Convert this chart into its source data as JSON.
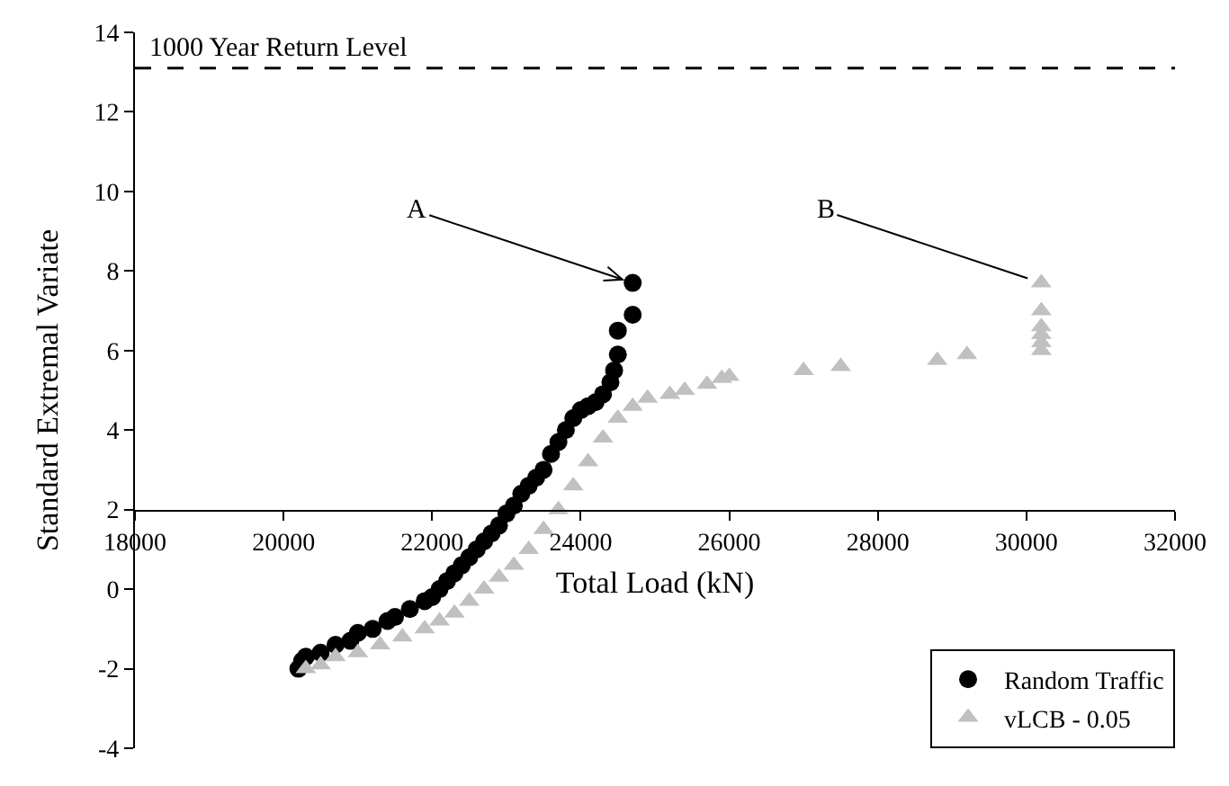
{
  "chart_data": {
    "type": "scatter",
    "xlabel": "Total Load (kN)",
    "ylabel": "Standard Extremal Variate",
    "xlim": [
      18000,
      32000
    ],
    "xticks": [
      18000,
      20000,
      22000,
      24000,
      26000,
      28000,
      30000,
      32000
    ],
    "ylim": [
      -4,
      14
    ],
    "yticks": [
      -4,
      -2,
      0,
      2,
      4,
      6,
      8,
      10,
      12,
      14
    ],
    "legend": "bottom right",
    "series": [
      {
        "name": "Random Traffic",
        "color": "#000000",
        "marker": "circle",
        "x": [
          20200,
          20250,
          20300,
          20500,
          20700,
          20900,
          21000,
          21200,
          21400,
          21500,
          21700,
          21900,
          22000,
          22100,
          22200,
          22300,
          22400,
          22500,
          22600,
          22700,
          22800,
          22900,
          23000,
          23100,
          23200,
          23300,
          23400,
          23500,
          23600,
          23700,
          23800,
          23900,
          24000,
          24100,
          24200,
          24300,
          24400,
          24450,
          24500,
          24500,
          24700,
          24700
        ],
        "values": [
          -2.0,
          -1.8,
          -1.7,
          -1.6,
          -1.4,
          -1.3,
          -1.1,
          -1.0,
          -0.8,
          -0.7,
          -0.5,
          -0.3,
          -0.2,
          0.0,
          0.2,
          0.4,
          0.6,
          0.8,
          1.0,
          1.2,
          1.4,
          1.6,
          1.9,
          2.1,
          2.4,
          2.6,
          2.8,
          3.0,
          3.4,
          3.7,
          4.0,
          4.3,
          4.5,
          4.6,
          4.7,
          4.9,
          5.2,
          5.5,
          5.9,
          6.5,
          6.9,
          7.7
        ]
      },
      {
        "name": "vLCB - 0.05",
        "color": "#c0c0c0",
        "marker": "triangle",
        "x": [
          20300,
          20500,
          20700,
          21000,
          21300,
          21600,
          21900,
          22100,
          22300,
          22500,
          22700,
          22900,
          23100,
          23300,
          23500,
          23700,
          23900,
          24100,
          24300,
          24500,
          24700,
          24900,
          25200,
          25400,
          25700,
          25900,
          26000,
          27000,
          27500,
          28800,
          29200,
          30200,
          30200,
          30200,
          30200,
          30200,
          30200
        ],
        "values": [
          -2.0,
          -1.9,
          -1.7,
          -1.6,
          -1.4,
          -1.2,
          -1.0,
          -0.8,
          -0.6,
          -0.3,
          0.0,
          0.3,
          0.6,
          1.0,
          1.5,
          2.0,
          2.6,
          3.2,
          3.8,
          4.3,
          4.6,
          4.8,
          4.9,
          5.0,
          5.15,
          5.3,
          5.35,
          5.5,
          5.6,
          5.75,
          5.9,
          6.0,
          6.2,
          6.4,
          6.6,
          7.0,
          7.7
        ]
      }
    ],
    "ref_lines": [
      {
        "axis": "y",
        "value": 13.1,
        "label": "1000 Year Return Level",
        "line_style": "dashed",
        "color": "#000000"
      }
    ],
    "annotations": [
      {
        "text": "A",
        "x": 24700,
        "y": 7.7
      },
      {
        "text": "B",
        "x": 30200,
        "y": 7.7
      }
    ]
  }
}
